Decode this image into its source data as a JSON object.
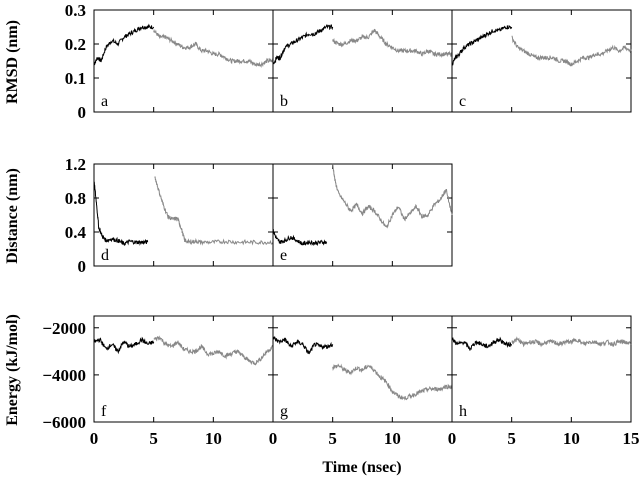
{
  "chart_data": {
    "type": "line",
    "xlabel": "Time (nsec)",
    "rows": [
      {
        "ylabel": "RMSD (nm)",
        "ylim": [
          0,
          0.3
        ],
        "yticks": [
          "0.3",
          "0.2",
          "0.1",
          "0"
        ],
        "ytick_values": [
          0.3,
          0.2,
          0.1,
          0
        ],
        "panels": [
          {
            "tag": "a",
            "series": [
              {
                "color": "#000000",
                "x": [
                  0,
                  0.3,
                  0.6,
                  1,
                  1.5,
                  2,
                  2.5,
                  3,
                  3.5,
                  4,
                  4.5,
                  5
                ],
                "y": [
                  0.14,
                  0.16,
                  0.15,
                  0.19,
                  0.21,
                  0.2,
                  0.22,
                  0.23,
                  0.24,
                  0.25,
                  0.25,
                  0.25
                ]
              },
              {
                "color": "#888888",
                "x": [
                  5,
                  5.5,
                  6,
                  6.5,
                  7,
                  7.5,
                  8,
                  8.5,
                  9,
                  9.5,
                  10,
                  10.5,
                  11,
                  11.5,
                  12,
                  12.5,
                  13,
                  13.5,
                  14,
                  14.5,
                  15
                ],
                "y": [
                  0.24,
                  0.22,
                  0.22,
                  0.21,
                  0.2,
                  0.19,
                  0.19,
                  0.2,
                  0.18,
                  0.18,
                  0.17,
                  0.17,
                  0.16,
                  0.15,
                  0.15,
                  0.15,
                  0.15,
                  0.14,
                  0.14,
                  0.15,
                  0.15
                ]
              }
            ]
          },
          {
            "tag": "b",
            "series": [
              {
                "color": "#000000",
                "x": [
                  0,
                  0.3,
                  0.6,
                  1,
                  1.5,
                  2,
                  2.5,
                  3,
                  3.5,
                  4,
                  4.5,
                  5
                ],
                "y": [
                  0.14,
                  0.16,
                  0.16,
                  0.19,
                  0.2,
                  0.21,
                  0.22,
                  0.23,
                  0.23,
                  0.24,
                  0.25,
                  0.25
                ]
              },
              {
                "color": "#888888",
                "x": [
                  5,
                  5.5,
                  6,
                  6.5,
                  7,
                  7.5,
                  8,
                  8.5,
                  9,
                  9.5,
                  10,
                  10.5,
                  11,
                  11.5,
                  12,
                  12.5,
                  13,
                  13.5,
                  14,
                  14.5,
                  15
                ],
                "y": [
                  0.21,
                  0.2,
                  0.2,
                  0.21,
                  0.21,
                  0.22,
                  0.22,
                  0.24,
                  0.22,
                  0.2,
                  0.19,
                  0.18,
                  0.18,
                  0.18,
                  0.18,
                  0.17,
                  0.18,
                  0.17,
                  0.17,
                  0.17,
                  0.17
                ]
              }
            ]
          },
          {
            "tag": "c",
            "series": [
              {
                "color": "#000000",
                "x": [
                  0,
                  0.3,
                  0.6,
                  1,
                  1.5,
                  2,
                  2.5,
                  3,
                  3.5,
                  4,
                  4.5,
                  5
                ],
                "y": [
                  0.14,
                  0.16,
                  0.17,
                  0.19,
                  0.2,
                  0.21,
                  0.22,
                  0.23,
                  0.24,
                  0.24,
                  0.25,
                  0.25
                ]
              },
              {
                "color": "#888888",
                "x": [
                  5,
                  5.5,
                  6,
                  6.5,
                  7,
                  7.5,
                  8,
                  8.5,
                  9,
                  9.5,
                  10,
                  10.5,
                  11,
                  11.5,
                  12,
                  12.5,
                  13,
                  13.5,
                  14,
                  14.5,
                  15
                ],
                "y": [
                  0.22,
                  0.19,
                  0.18,
                  0.17,
                  0.16,
                  0.16,
                  0.16,
                  0.16,
                  0.15,
                  0.15,
                  0.14,
                  0.15,
                  0.16,
                  0.16,
                  0.17,
                  0.17,
                  0.18,
                  0.19,
                  0.18,
                  0.19,
                  0.18
                ]
              }
            ]
          }
        ]
      },
      {
        "ylabel": "Distance (nm)",
        "ylim": [
          0,
          1.2
        ],
        "yticks": [
          "1.2",
          "0.8",
          "0.4",
          "0"
        ],
        "ytick_values": [
          1.2,
          0.8,
          0.4,
          0
        ],
        "panels": [
          {
            "tag": "d",
            "series": [
              {
                "color": "#000000",
                "x": [
                  0,
                  0.2,
                  0.4,
                  0.7,
                  1,
                  1.5,
                  2,
                  2.5,
                  3,
                  3.5,
                  4,
                  4.5
                ],
                "y": [
                  1.0,
                  0.75,
                  0.45,
                  0.35,
                  0.3,
                  0.32,
                  0.3,
                  0.26,
                  0.29,
                  0.28,
                  0.28,
                  0.28
                ]
              },
              {
                "color": "#888888",
                "x": [
                  5.1,
                  5.4,
                  5.8,
                  6.2,
                  6.6,
                  7,
                  7.3,
                  7.6,
                  8,
                  8.5,
                  9,
                  10,
                  11,
                  12,
                  13,
                  14,
                  15
                ],
                "y": [
                  1.05,
                  0.9,
                  0.72,
                  0.58,
                  0.55,
                  0.56,
                  0.45,
                  0.3,
                  0.28,
                  0.29,
                  0.28,
                  0.28,
                  0.29,
                  0.28,
                  0.28,
                  0.28,
                  0.28
                ]
              }
            ]
          },
          {
            "tag": "e",
            "series": [
              {
                "color": "#000000",
                "x": [
                  0,
                  0.3,
                  0.6,
                  1,
                  1.5,
                  2,
                  2.5,
                  3,
                  3.5,
                  4,
                  4.5
                ],
                "y": [
                  0.42,
                  0.32,
                  0.28,
                  0.3,
                  0.34,
                  0.3,
                  0.26,
                  0.28,
                  0.27,
                  0.28,
                  0.28
                ]
              },
              {
                "color": "#888888",
                "x": [
                  5,
                  5.2,
                  5.5,
                  6,
                  6.5,
                  7,
                  7.5,
                  8,
                  8.5,
                  9,
                  9.5,
                  10,
                  10.5,
                  11,
                  11.5,
                  12,
                  12.5,
                  13,
                  13.5,
                  14,
                  14.5,
                  15
                ],
                "y": [
                  1.2,
                  1.0,
                  0.85,
                  0.75,
                  0.65,
                  0.72,
                  0.62,
                  0.7,
                  0.65,
                  0.55,
                  0.45,
                  0.6,
                  0.7,
                  0.55,
                  0.62,
                  0.7,
                  0.58,
                  0.6,
                  0.72,
                  0.78,
                  0.9,
                  0.6
                ]
              }
            ]
          }
        ]
      },
      {
        "ylabel": "Energy (kJ/mol)",
        "ylim": [
          -6000,
          -1500
        ],
        "yticks": [
          "−2000",
          "−4000",
          "−6000"
        ],
        "ytick_values": [
          -2000,
          -4000,
          -6000
        ],
        "panels": [
          {
            "tag": "f",
            "series": [
              {
                "color": "#000000",
                "x": [
                  0,
                  0.5,
                  1,
                  1.5,
                  2,
                  2.5,
                  3,
                  3.5,
                  4,
                  4.5,
                  5
                ],
                "y": [
                  -2600,
                  -2500,
                  -2900,
                  -2700,
                  -3000,
                  -2600,
                  -2800,
                  -2700,
                  -2500,
                  -2700,
                  -2600
                ]
              },
              {
                "color": "#888888",
                "x": [
                  5,
                  5.5,
                  6,
                  6.5,
                  7,
                  7.5,
                  8,
                  8.5,
                  9,
                  9.5,
                  10,
                  10.5,
                  11,
                  11.5,
                  12,
                  12.5,
                  13,
                  13.5,
                  14,
                  14.5,
                  15
                ],
                "y": [
                  -2500,
                  -2400,
                  -2700,
                  -2800,
                  -2600,
                  -2900,
                  -3000,
                  -3000,
                  -2800,
                  -3100,
                  -3100,
                  -3000,
                  -3200,
                  -3100,
                  -3000,
                  -3200,
                  -3400,
                  -3500,
                  -3300,
                  -3000,
                  -2800
                ]
              }
            ]
          },
          {
            "tag": "g",
            "series": [
              {
                "color": "#000000",
                "x": [
                  0,
                  0.5,
                  1,
                  1.5,
                  2,
                  2.5,
                  3,
                  3.5,
                  4,
                  4.5,
                  5
                ],
                "y": [
                  -2400,
                  -2600,
                  -2500,
                  -2800,
                  -2600,
                  -2700,
                  -3100,
                  -2700,
                  -2800,
                  -2800,
                  -2700
                ]
              },
              {
                "color": "#888888",
                "x": [
                  5,
                  5.5,
                  6,
                  6.5,
                  7,
                  7.5,
                  8,
                  8.5,
                  9,
                  9.5,
                  10,
                  10.5,
                  11,
                  11.5,
                  12,
                  12.5,
                  13,
                  13.5,
                  14,
                  14.5,
                  15
                ],
                "y": [
                  -3700,
                  -3600,
                  -3800,
                  -3900,
                  -3700,
                  -3800,
                  -3600,
                  -3800,
                  -4100,
                  -4300,
                  -4700,
                  -4900,
                  -5000,
                  -4900,
                  -4800,
                  -4700,
                  -4600,
                  -4600,
                  -4600,
                  -4500,
                  -4500
                ]
              }
            ]
          },
          {
            "tag": "h",
            "series": [
              {
                "color": "#000000",
                "x": [
                  0,
                  0.5,
                  1,
                  1.5,
                  2,
                  2.5,
                  3,
                  3.5,
                  4,
                  4.5,
                  5
                ],
                "y": [
                  -2500,
                  -2700,
                  -2600,
                  -2900,
                  -2600,
                  -2700,
                  -2800,
                  -2600,
                  -2500,
                  -2700,
                  -2700
                ]
              },
              {
                "color": "#888888",
                "x": [
                  5,
                  5.5,
                  6,
                  6.5,
                  7,
                  7.5,
                  8,
                  8.5,
                  9,
                  9.5,
                  10,
                  10.5,
                  11,
                  11.5,
                  12,
                  12.5,
                  13,
                  13.5,
                  14,
                  14.5,
                  15
                ],
                "y": [
                  -2600,
                  -2500,
                  -2700,
                  -2600,
                  -2600,
                  -2700,
                  -2600,
                  -2600,
                  -2700,
                  -2600,
                  -2600,
                  -2500,
                  -2700,
                  -2600,
                  -2600,
                  -2700,
                  -2600,
                  -2700,
                  -2600,
                  -2600,
                  -2700
                ]
              }
            ]
          }
        ]
      }
    ],
    "xlim": [
      0,
      15
    ],
    "x_tick_labels": [
      [
        "0",
        "5",
        "10"
      ],
      [
        "0",
        "5",
        "10"
      ],
      [
        "0",
        "5",
        "10",
        "15"
      ]
    ],
    "x_tick_values": [
      [
        0,
        5,
        10
      ],
      [
        0,
        5,
        10
      ],
      [
        0,
        5,
        10,
        15
      ]
    ]
  }
}
